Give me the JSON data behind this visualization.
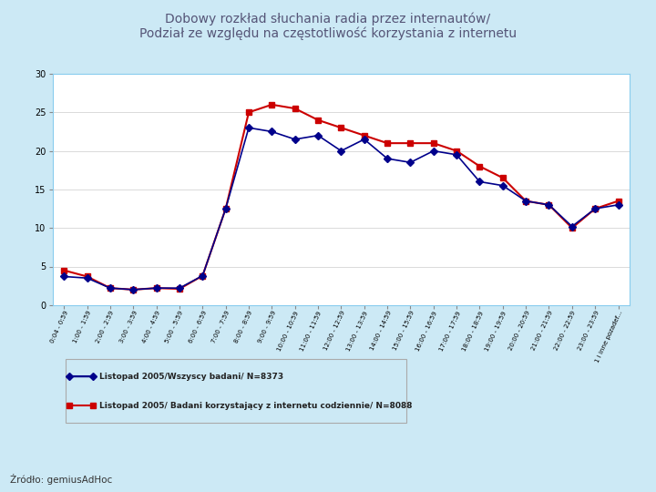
{
  "title_line1": "Dobowy rozkład słuchania radia przez internautów/",
  "title_line2": "Podział ze względu na częstotliwość korzystania z internetu",
  "background_color": "#cce9f5",
  "plot_bg_color": "#ffffff",
  "border_color": "#88ccee",
  "grid_color": "#cccccc",
  "ylim": [
    0,
    30
  ],
  "yticks": [
    0,
    5,
    10,
    15,
    20,
    25,
    30
  ],
  "legend1": "Listopad 2005/Wszyscy badani/ N=8373",
  "legend2": "Listopad 2005/ Badani korzystający z internetu codziennie/ N=8088",
  "source": "Źródło: gemiusAdHoc",
  "x_labels": [
    "0:04 - 0:59",
    "1:00 - 1:59",
    "2:00 - 2:59",
    "3:00 - 3:59",
    "4:00 - 4:59",
    "5:00 - 5:59",
    "6:00 - 6:59",
    "7:00 - 7:59",
    "8:00 - 8:59",
    "9:00 - 9:59",
    "10:00 - 10:59",
    "11:00 - 11:59",
    "12:00 - 12:59",
    "13:00 - 13:59",
    "14:00 - 14:59",
    "15:00 - 15:59",
    "16:00 - 16:59",
    "17:00 - 17:59",
    "18:00 - 18:59",
    "19:00 - 19:59",
    "20:00 - 20:59",
    "21:00 - 21:59",
    "22:00 - 22:59",
    "23:00 - 23:59",
    "1 i inne pozadef..."
  ],
  "series1_color": "#00008b",
  "series1_marker": "D",
  "series1_values": [
    3.7,
    3.5,
    2.2,
    2.0,
    2.2,
    2.2,
    3.8,
    12.5,
    23.0,
    22.5,
    21.5,
    22.0,
    20.0,
    21.5,
    19.0,
    18.5,
    20.0,
    19.5,
    16.0,
    15.5,
    13.5,
    13.0,
    10.2,
    12.5,
    13.0
  ],
  "series2_color": "#cc0000",
  "series2_marker": "s",
  "series2_values": [
    4.5,
    3.7,
    2.2,
    2.0,
    2.2,
    2.1,
    3.8,
    12.5,
    25.0,
    26.0,
    25.5,
    24.0,
    23.0,
    22.0,
    21.0,
    21.0,
    21.0,
    20.0,
    18.0,
    16.5,
    13.5,
    13.0,
    10.0,
    12.5,
    13.5
  ],
  "bottom_bar_color": "#9fc8de",
  "title_color": "#555577",
  "title_fontsize": 10
}
